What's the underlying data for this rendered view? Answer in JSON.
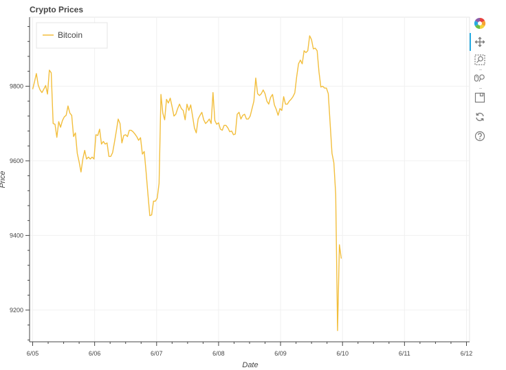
{
  "chart_data": {
    "type": "line",
    "title": "Crypto Prices",
    "xlabel": "Date",
    "ylabel": "Price",
    "x_tick_labels": [
      "6/05",
      "6/06",
      "6/07",
      "6/08",
      "6/09",
      "6/10",
      "6/11",
      "6/12"
    ],
    "y_tick_labels": [
      "9200",
      "9400",
      "9600",
      "9800"
    ],
    "y_ticks": [
      9200,
      9400,
      9600,
      9800
    ],
    "xlim": [
      -0.05,
      7.05
    ],
    "ylim": [
      9115,
      9985
    ],
    "grid": true,
    "legend_position": "top-left",
    "series": [
      {
        "name": "Bitcoin",
        "color": "#f2be3c",
        "points": [
          [
            0.0,
            9792
          ],
          [
            0.03,
            9812
          ],
          [
            0.06,
            9834
          ],
          [
            0.09,
            9803
          ],
          [
            0.12,
            9790
          ],
          [
            0.15,
            9783
          ],
          [
            0.18,
            9792
          ],
          [
            0.21,
            9802
          ],
          [
            0.24,
            9779
          ],
          [
            0.27,
            9843
          ],
          [
            0.3,
            9836
          ],
          [
            0.33,
            9700
          ],
          [
            0.36,
            9698
          ],
          [
            0.39,
            9663
          ],
          [
            0.42,
            9705
          ],
          [
            0.45,
            9690
          ],
          [
            0.48,
            9708
          ],
          [
            0.51,
            9718
          ],
          [
            0.54,
            9722
          ],
          [
            0.57,
            9747
          ],
          [
            0.6,
            9728
          ],
          [
            0.63,
            9722
          ],
          [
            0.66,
            9665
          ],
          [
            0.69,
            9675
          ],
          [
            0.72,
            9620
          ],
          [
            0.75,
            9597
          ],
          [
            0.78,
            9570
          ],
          [
            0.81,
            9605
          ],
          [
            0.84,
            9628
          ],
          [
            0.87,
            9605
          ],
          [
            0.9,
            9610
          ],
          [
            0.93,
            9605
          ],
          [
            0.96,
            9610
          ],
          [
            0.99,
            9605
          ],
          [
            1.02,
            9670
          ],
          [
            1.05,
            9668
          ],
          [
            1.08,
            9685
          ],
          [
            1.11,
            9645
          ],
          [
            1.14,
            9652
          ],
          [
            1.17,
            9645
          ],
          [
            1.2,
            9648
          ],
          [
            1.23,
            9612
          ],
          [
            1.26,
            9612
          ],
          [
            1.29,
            9622
          ],
          [
            1.32,
            9650
          ],
          [
            1.35,
            9680
          ],
          [
            1.38,
            9712
          ],
          [
            1.41,
            9700
          ],
          [
            1.44,
            9648
          ],
          [
            1.47,
            9668
          ],
          [
            1.5,
            9670
          ],
          [
            1.53,
            9665
          ],
          [
            1.56,
            9682
          ],
          [
            1.59,
            9682
          ],
          [
            1.62,
            9678
          ],
          [
            1.65,
            9672
          ],
          [
            1.68,
            9665
          ],
          [
            1.71,
            9655
          ],
          [
            1.74,
            9662
          ],
          [
            1.77,
            9618
          ],
          [
            1.8,
            9625
          ],
          [
            1.83,
            9570
          ],
          [
            1.86,
            9510
          ],
          [
            1.89,
            9453
          ],
          [
            1.92,
            9455
          ],
          [
            1.95,
            9492
          ],
          [
            1.98,
            9492
          ],
          [
            2.01,
            9500
          ],
          [
            2.04,
            9540
          ],
          [
            2.07,
            9778
          ],
          [
            2.1,
            9728
          ],
          [
            2.13,
            9710
          ],
          [
            2.16,
            9765
          ],
          [
            2.19,
            9755
          ],
          [
            2.22,
            9768
          ],
          [
            2.25,
            9745
          ],
          [
            2.28,
            9720
          ],
          [
            2.31,
            9725
          ],
          [
            2.34,
            9740
          ],
          [
            2.37,
            9752
          ],
          [
            2.4,
            9740
          ],
          [
            2.43,
            9735
          ],
          [
            2.46,
            9710
          ],
          [
            2.49,
            9752
          ],
          [
            2.52,
            9735
          ],
          [
            2.55,
            9750
          ],
          [
            2.58,
            9720
          ],
          [
            2.61,
            9688
          ],
          [
            2.64,
            9675
          ],
          [
            2.67,
            9712
          ],
          [
            2.7,
            9722
          ],
          [
            2.73,
            9730
          ],
          [
            2.76,
            9710
          ],
          [
            2.79,
            9700
          ],
          [
            2.82,
            9705
          ],
          [
            2.85,
            9712
          ],
          [
            2.88,
            9700
          ],
          [
            2.91,
            9783
          ],
          [
            2.94,
            9708
          ],
          [
            2.97,
            9698
          ],
          [
            3.0,
            9702
          ],
          [
            3.03,
            9685
          ],
          [
            3.06,
            9682
          ],
          [
            3.09,
            9695
          ],
          [
            3.12,
            9695
          ],
          [
            3.15,
            9688
          ],
          [
            3.18,
            9678
          ],
          [
            3.21,
            9680
          ],
          [
            3.24,
            9670
          ],
          [
            3.27,
            9672
          ],
          [
            3.3,
            9725
          ],
          [
            3.33,
            9730
          ],
          [
            3.36,
            9712
          ],
          [
            3.39,
            9722
          ],
          [
            3.42,
            9725
          ],
          [
            3.45,
            9712
          ],
          [
            3.48,
            9712
          ],
          [
            3.51,
            9720
          ],
          [
            3.54,
            9740
          ],
          [
            3.57,
            9760
          ],
          [
            3.6,
            9822
          ],
          [
            3.63,
            9780
          ],
          [
            3.66,
            9775
          ],
          [
            3.69,
            9780
          ],
          [
            3.72,
            9790
          ],
          [
            3.75,
            9780
          ],
          [
            3.78,
            9760
          ],
          [
            3.81,
            9752
          ],
          [
            3.84,
            9770
          ],
          [
            3.87,
            9778
          ],
          [
            3.9,
            9750
          ],
          [
            3.93,
            9738
          ],
          [
            3.96,
            9722
          ],
          [
            3.99,
            9740
          ],
          [
            4.02,
            9735
          ],
          [
            4.05,
            9772
          ],
          [
            4.08,
            9752
          ],
          [
            4.11,
            9752
          ],
          [
            4.14,
            9760
          ],
          [
            4.17,
            9765
          ],
          [
            4.2,
            9772
          ],
          [
            4.23,
            9782
          ],
          [
            4.26,
            9825
          ],
          [
            4.29,
            9860
          ],
          [
            4.32,
            9870
          ],
          [
            4.35,
            9860
          ],
          [
            4.38,
            9895
          ],
          [
            4.41,
            9890
          ],
          [
            4.44,
            9895
          ],
          [
            4.47,
            9935
          ],
          [
            4.5,
            9925
          ],
          [
            4.53,
            9900
          ],
          [
            4.56,
            9902
          ],
          [
            4.59,
            9895
          ],
          [
            4.62,
            9838
          ],
          [
            4.65,
            9798
          ],
          [
            4.68,
            9800
          ],
          [
            4.71,
            9795
          ],
          [
            4.74,
            9795
          ],
          [
            4.77,
            9780
          ],
          [
            4.8,
            9700
          ],
          [
            4.83,
            9620
          ],
          [
            4.86,
            9595
          ],
          [
            4.89,
            9510
          ],
          [
            4.92,
            9145
          ],
          [
            4.95,
            9375
          ],
          [
            4.98,
            9338
          ]
        ]
      }
    ]
  },
  "toolbar": {
    "tools": [
      "bokeh-logo-icon",
      "pan-icon",
      "box-zoom-icon",
      "wheel-zoom-icon",
      "save-icon",
      "reset-icon",
      "help-icon"
    ],
    "active_tool": "pan-icon",
    "active_color": "#26aae1"
  }
}
